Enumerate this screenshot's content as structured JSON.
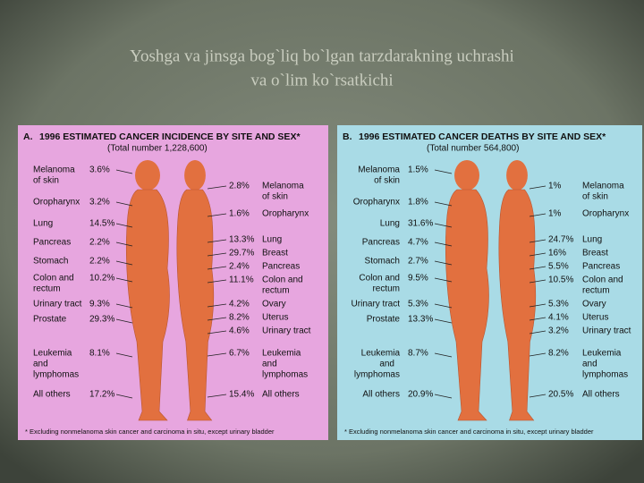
{
  "slide": {
    "title_lines": [
      "Yoshga va jinsga bog`liq bo`lgan tarzdarakning uchrashi",
      "va o`lim ko`rsatkichi"
    ]
  },
  "panels": [
    {
      "letter": "A.",
      "title": "1996 ESTIMATED CANCER INCIDENCE BY SITE AND SEX*",
      "total": "(Total number 1,228,600)",
      "male": [
        {
          "label": [
            "Melanoma",
            "of skin"
          ],
          "value": "3.6%"
        },
        {
          "label": [
            "Oropharynx"
          ],
          "value": "3.2%"
        },
        {
          "label": [
            "Lung"
          ],
          "value": "14.5%"
        },
        {
          "label": [
            "Pancreas"
          ],
          "value": "2.2%"
        },
        {
          "label": [
            "Stomach"
          ],
          "value": "2.2%"
        },
        {
          "label": [
            "Colon and",
            "rectum"
          ],
          "value": "10.2%"
        },
        {
          "label": [
            "Urinary tract"
          ],
          "value": "9.3%"
        },
        {
          "label": [
            "Prostate"
          ],
          "value": "29.3%"
        },
        {
          "label": [
            "Leukemia",
            "and",
            "lymphomas"
          ],
          "value": "8.1%"
        },
        {
          "label": [
            "All others"
          ],
          "value": "17.2%"
        }
      ],
      "female": [
        {
          "label": [
            "Melanoma",
            "of skin"
          ],
          "value": "2.8%"
        },
        {
          "label": [
            "Oropharynx"
          ],
          "value": "1.6%"
        },
        {
          "label": [
            "Lung"
          ],
          "value": "13.3%"
        },
        {
          "label": [
            "Breast"
          ],
          "value": "29.7%"
        },
        {
          "label": [
            "Pancreas"
          ],
          "value": "2.4%"
        },
        {
          "label": [
            "Colon and",
            "rectum"
          ],
          "value": "11.1%"
        },
        {
          "label": [
            "Ovary"
          ],
          "value": "4.2%"
        },
        {
          "label": [
            "Uterus"
          ],
          "value": "8.2%"
        },
        {
          "label": [
            "Urinary tract"
          ],
          "value": "4.6%"
        },
        {
          "label": [
            "Leukemia",
            "and",
            "lymphomas"
          ],
          "value": "6.7%"
        },
        {
          "label": [
            "All others"
          ],
          "value": "15.4%"
        }
      ],
      "footnote": "* Excluding nonmelanoma skin cancer and carcinoma in situ, except urinary bladder"
    },
    {
      "letter": "B.",
      "title": "1996 ESTIMATED CANCER DEATHS BY SITE AND SEX*",
      "total": "(Total number 564,800)",
      "male": [
        {
          "label": [
            "Melanoma",
            "of skin"
          ],
          "value": "1.5%"
        },
        {
          "label": [
            "Oropharynx"
          ],
          "value": "1.8%"
        },
        {
          "label": [
            "Lung"
          ],
          "value": "31.6%"
        },
        {
          "label": [
            "Pancreas"
          ],
          "value": "4.7%"
        },
        {
          "label": [
            "Stomach"
          ],
          "value": "2.7%"
        },
        {
          "label": [
            "Colon and",
            "rectum"
          ],
          "value": "9.5%"
        },
        {
          "label": [
            "Urinary tract"
          ],
          "value": "5.3%"
        },
        {
          "label": [
            "Prostate"
          ],
          "value": "13.3%"
        },
        {
          "label": [
            "Leukemia",
            "and",
            "lymphomas"
          ],
          "value": "8.7%"
        },
        {
          "label": [
            "All others"
          ],
          "value": "20.9%"
        }
      ],
      "female": [
        {
          "label": [
            "Melanoma",
            "of skin"
          ],
          "value": "1%"
        },
        {
          "label": [
            "Oropharynx"
          ],
          "value": "1%"
        },
        {
          "label": [
            "Lung"
          ],
          "value": "24.7%"
        },
        {
          "label": [
            "Breast"
          ],
          "value": "16%"
        },
        {
          "label": [
            "Pancreas"
          ],
          "value": "5.5%"
        },
        {
          "label": [
            "Colon and",
            "rectum"
          ],
          "value": "10.5%"
        },
        {
          "label": [
            "Ovary"
          ],
          "value": "5.3%"
        },
        {
          "label": [
            "Uterus"
          ],
          "value": "4.1%"
        },
        {
          "label": [
            "Urinary tract"
          ],
          "value": "3.2%"
        },
        {
          "label": [
            "Leukemia",
            "and",
            "lymphomas"
          ],
          "value": "8.2%"
        },
        {
          "label": [
            "All others"
          ],
          "value": "20.5%"
        }
      ],
      "footnote": "* Excluding nonmelanoma skin cancer and carcinoma in situ, except urinary bladder"
    }
  ]
}
